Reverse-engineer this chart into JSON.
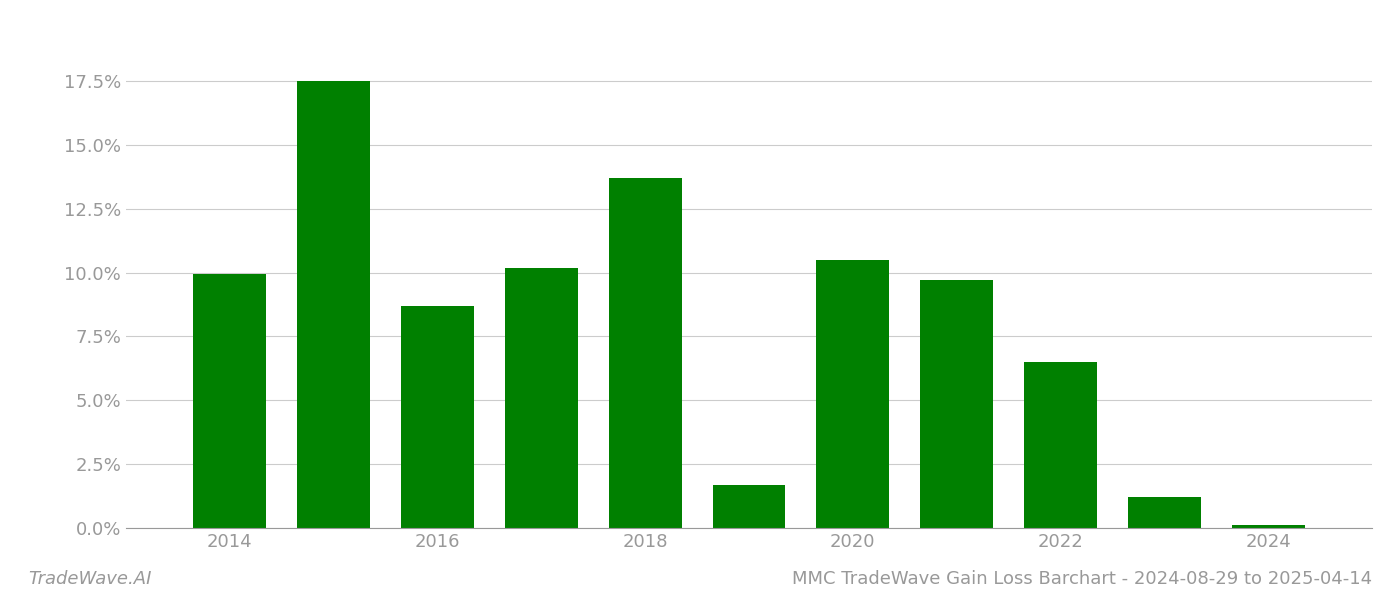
{
  "years": [
    2014,
    2015,
    2016,
    2017,
    2018,
    2019,
    2020,
    2021,
    2022,
    2023,
    2024
  ],
  "values": [
    0.0995,
    0.175,
    0.087,
    0.102,
    0.137,
    0.017,
    0.105,
    0.097,
    0.065,
    0.012,
    0.001
  ],
  "bar_color": "#008000",
  "background_color": "#ffffff",
  "title": "MMC TradeWave Gain Loss Barchart - 2024-08-29 to 2025-04-14",
  "watermark": "TradeWave.AI",
  "xlim": [
    2013.0,
    2025.0
  ],
  "ylim": [
    0,
    0.195
  ],
  "yticks": [
    0.0,
    0.025,
    0.05,
    0.075,
    0.1,
    0.125,
    0.15,
    0.175
  ],
  "xticks": [
    2014,
    2016,
    2018,
    2020,
    2022,
    2024
  ],
  "grid_color": "#cccccc",
  "tick_color": "#999999",
  "title_color": "#999999",
  "watermark_color": "#999999",
  "bar_width": 0.7
}
